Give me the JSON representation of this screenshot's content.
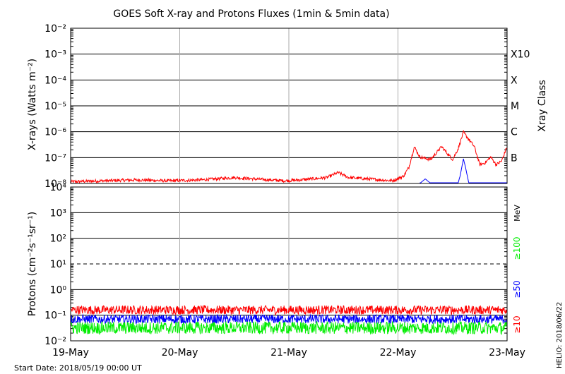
{
  "title": "GOES Soft X-ray and Protons Fluxes   (1min & 5min data)",
  "start_date": "Start Date: 2018/05/19 00:00 UT",
  "stamp": "HELIO: 2018/06/22",
  "colors": {
    "red": "#ff0000",
    "blue": "#0000ff",
    "green": "#00ee00",
    "grid": "#aaaaaa"
  },
  "chart_data": [
    {
      "type": "line",
      "panel": "xray",
      "ylabel": "X-rays (Watts m⁻²)",
      "yscale": "log",
      "ylim": [
        1e-08,
        0.01
      ],
      "yticks": [
        "10⁻⁸",
        "10⁻⁷",
        "10⁻⁶",
        "10⁻⁵",
        "10⁻⁴",
        "10⁻³",
        "10⁻²"
      ],
      "xticks": [
        "19-May",
        "20-May",
        "21-May",
        "22-May",
        "23-May"
      ],
      "right_axis_label": "Xray Class",
      "classes": [
        {
          "label": "B",
          "value": 1e-07
        },
        {
          "label": "C",
          "value": 1e-06
        },
        {
          "label": "M",
          "value": 1e-05
        },
        {
          "label": "X",
          "value": 0.0001
        },
        {
          "label": "X10",
          "value": 0.001
        }
      ],
      "series": [
        {
          "color": "red",
          "x": [
            0,
            0.3,
            0.6,
            0.9,
            1.2,
            1.5,
            1.7,
            1.96,
            2.1,
            2.35,
            2.45,
            2.55,
            2.75,
            2.95,
            3.05,
            3.1,
            3.15,
            3.2,
            3.3,
            3.4,
            3.5,
            3.55,
            3.6,
            3.7,
            3.75,
            3.8,
            3.85,
            3.9,
            3.95,
            4.0
          ],
          "y": [
            1.1e-08,
            1.2e-08,
            1.3e-08,
            1.2e-08,
            1.3e-08,
            1.6e-08,
            1.4e-08,
            1.2e-08,
            1.3e-08,
            1.6e-08,
            2.5e-08,
            1.6e-08,
            1.4e-08,
            1.2e-08,
            1.8e-08,
            4e-08,
            2.5e-07,
            1e-07,
            8e-08,
            2.5e-07,
            8e-08,
            2e-07,
            9e-07,
            2.5e-07,
            5e-08,
            6e-08,
            1e-07,
            5e-08,
            7e-08,
            2.5e-07
          ]
        },
        {
          "color": "blue",
          "x": [
            3.2,
            3.25,
            3.3,
            3.55,
            3.57,
            3.6,
            3.62,
            3.65,
            4.0
          ],
          "y": [
            1e-08,
            1.5e-08,
            1e-08,
            1e-08,
            2e-08,
            9e-08,
            4e-08,
            1e-08,
            1e-08
          ]
        }
      ]
    },
    {
      "type": "line",
      "panel": "protons",
      "ylabel": "Protons (cm⁻²s⁻¹sr⁻¹)",
      "yscale": "log",
      "ylim": [
        0.01,
        10000.0
      ],
      "yticks": [
        "10⁻²",
        "10⁻¹",
        "10⁰",
        "10¹",
        "10²",
        "10³",
        "10⁴"
      ],
      "xticks": [
        "19-May",
        "20-May",
        "21-May",
        "22-May",
        "23-May"
      ],
      "threshold": 10,
      "legend": {
        "units": "MeV",
        "entries": [
          {
            "label": "≥10",
            "color": "red"
          },
          {
            "label": "≥50",
            "color": "blue"
          },
          {
            "label": "≥100",
            "color": "green"
          }
        ]
      },
      "series": [
        {
          "color": "red",
          "x": [
            0,
            4
          ],
          "y": [
            0.16,
            0.16
          ]
        },
        {
          "color": "blue",
          "x": [
            0,
            4
          ],
          "y": [
            0.07,
            0.07
          ]
        },
        {
          "color": "green",
          "x": [
            0,
            4
          ],
          "y": [
            0.032,
            0.032
          ]
        }
      ]
    }
  ]
}
